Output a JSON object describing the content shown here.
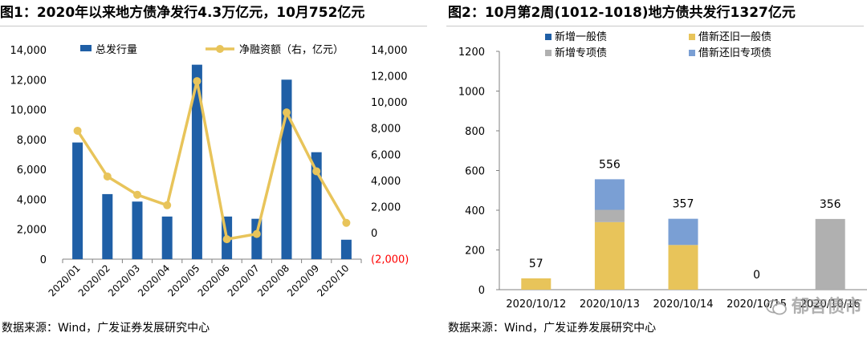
{
  "charts": [
    {
      "title": "图1：2020年以来地方债净发行4.3万亿元，10月752亿元",
      "source": "数据来源：Wind，广发证券发展研究中心"
    },
    {
      "title": "图2：10月第2周(1012-1018)地方债共发行1327亿元",
      "source": "数据来源：Wind，广发证券发展研究中心"
    }
  ],
  "watermark": {
    "text": "郁言债市",
    "icon": "wechat-icon"
  },
  "colors": {
    "blue_dark": "#1f5fa6",
    "gold": "#e8c45a",
    "gray": "#b0b0b0",
    "blue_light": "#7a9fd4",
    "negative": "#ff0000"
  },
  "chart_data": [
    {
      "type": "bar",
      "categories": [
        "2020/01",
        "2020/02",
        "2020/03",
        "2020/04",
        "2020/05",
        "2020/06",
        "2020/07",
        "2020/08",
        "2020/09",
        "2020/10"
      ],
      "series": [
        {
          "name": "总发行量",
          "type": "bar",
          "axis": "left",
          "color": "#1f5fa6",
          "values": [
            7800,
            4350,
            3850,
            2850,
            13000,
            2850,
            2700,
            12000,
            7150,
            1300
          ]
        },
        {
          "name": "净融资额（右，亿元）",
          "type": "line",
          "axis": "right",
          "color": "#e8c45a",
          "values": [
            7800,
            4300,
            2900,
            2100,
            11600,
            -500,
            -100,
            9200,
            4700,
            752
          ]
        }
      ],
      "left_axis": {
        "min": 0,
        "max": 14000,
        "ticks": [
          "0",
          "2,000",
          "4,000",
          "6,000",
          "8,000",
          "10,000",
          "12,000",
          "14,000"
        ]
      },
      "right_axis": {
        "min": -2000,
        "max": 14000,
        "ticks": [
          "(2,000)",
          "0",
          "2,000",
          "4,000",
          "6,000",
          "8,000",
          "10,000",
          "12,000",
          "14,000"
        ]
      },
      "legend": "top",
      "grid": false
    },
    {
      "type": "bar",
      "stacked": true,
      "categories": [
        "2020/10/12",
        "2020/10/13",
        "2020/10/14",
        "2020/10/15",
        "2020/10/16"
      ],
      "series": [
        {
          "name": "新增一般债",
          "color": "#1f5fa6",
          "values": [
            0,
            0,
            0,
            0,
            0
          ]
        },
        {
          "name": "借新还旧一般债",
          "color": "#e8c45a",
          "values": [
            57,
            340,
            225,
            0,
            0
          ]
        },
        {
          "name": "新增专项债",
          "color": "#b0b0b0",
          "values": [
            0,
            62,
            0,
            0,
            356
          ]
        },
        {
          "name": "借新还旧专项债",
          "color": "#7a9fd4",
          "values": [
            0,
            154,
            132,
            0,
            0
          ]
        }
      ],
      "totals": [
        "57",
        "556",
        "357",
        "0",
        "356"
      ],
      "y_axis": {
        "min": 0,
        "max": 1200,
        "ticks": [
          "0",
          "200",
          "400",
          "600",
          "800",
          "1000",
          "1200"
        ]
      },
      "legend": "top",
      "grid": false
    }
  ]
}
